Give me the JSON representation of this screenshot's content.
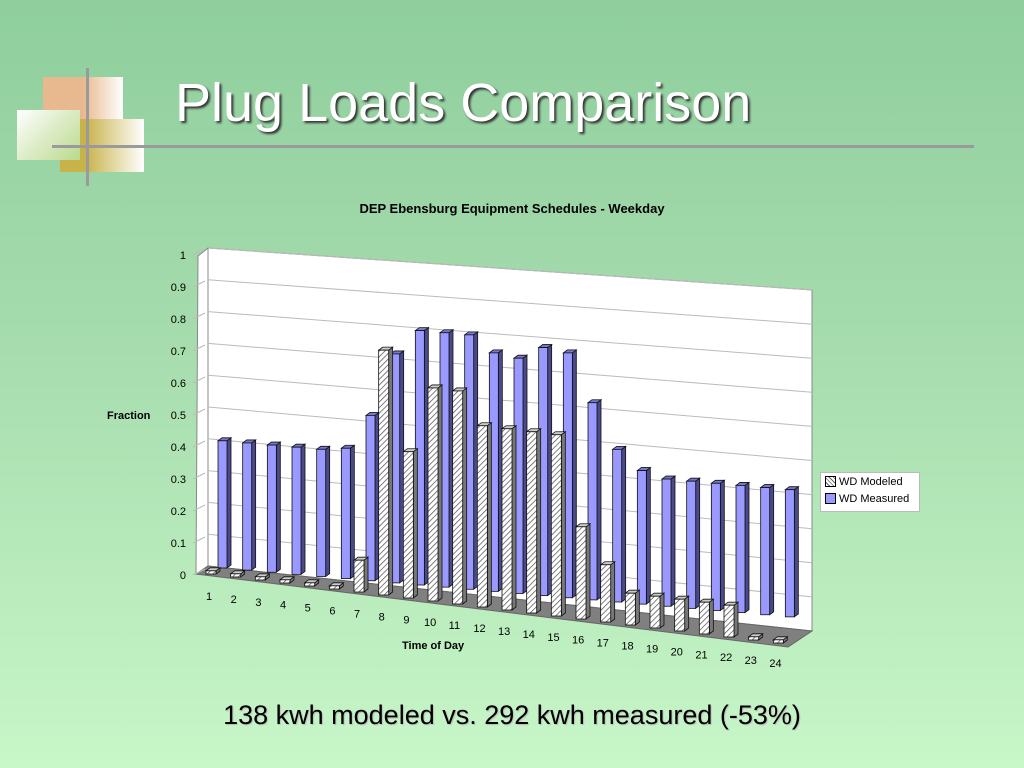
{
  "slide": {
    "title": "Plug Loads Comparison",
    "caption": "138 kwh modeled vs. 292 kwh measured (-53%)"
  },
  "colors": {
    "measured": "#9999ff",
    "modeled_hatch": "#666666",
    "background_top": "#8fce9d",
    "background_bottom": "#c8f7c8"
  },
  "chart_data": {
    "type": "bar",
    "title": "DEP Ebensburg Equipment Schedules - Weekday",
    "xlabel": "Time of Day",
    "ylabel": "Fraction",
    "ylim": [
      0,
      1
    ],
    "yticks": [
      "0",
      "0.1",
      "0.2",
      "0.3",
      "0.4",
      "0.5",
      "0.6",
      "0.7",
      "0.8",
      "0.9",
      "1"
    ],
    "categories": [
      "1",
      "2",
      "3",
      "4",
      "5",
      "6",
      "7",
      "8",
      "9",
      "10",
      "11",
      "12",
      "13",
      "14",
      "15",
      "16",
      "17",
      "18",
      "19",
      "20",
      "21",
      "22",
      "23",
      "24"
    ],
    "series": [
      {
        "name": "WD Modeled",
        "values": [
          0.01,
          0.01,
          0.01,
          0.01,
          0.01,
          0.01,
          0.1,
          0.77,
          0.46,
          0.67,
          0.67,
          0.57,
          0.57,
          0.57,
          0.57,
          0.29,
          0.18,
          0.1,
          0.1,
          0.1,
          0.1,
          0.1,
          0.01,
          0.01
        ]
      },
      {
        "name": "WD Measured",
        "values": [
          0.4,
          0.4,
          0.4,
          0.4,
          0.4,
          0.41,
          0.52,
          0.72,
          0.8,
          0.8,
          0.8,
          0.75,
          0.74,
          0.78,
          0.77,
          0.62,
          0.48,
          0.42,
          0.4,
          0.4,
          0.4,
          0.4,
          0.4,
          0.4
        ]
      }
    ],
    "legend": [
      "WD Modeled",
      "WD Measured"
    ],
    "legend_position": "right",
    "grid": true,
    "style": "3d-column"
  }
}
